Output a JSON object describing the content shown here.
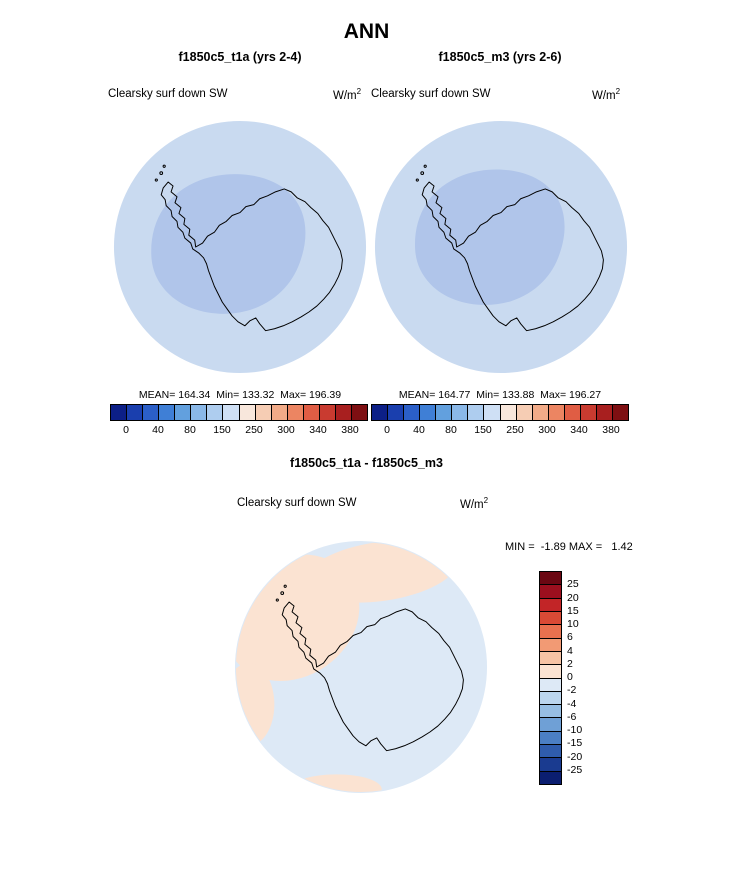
{
  "page_title": "ANN",
  "units": {
    "base": "W/m",
    "exp": "2"
  },
  "panels": {
    "left": {
      "title": "f1850c5_t1a (yrs 2-4)",
      "field": "Clearsky surf down SW",
      "stats": "MEAN= 164.34  Min= 133.32  Max= 196.39"
    },
    "right": {
      "title": "f1850c5_m3 (yrs 2-6)",
      "field": "Clearsky surf down SW",
      "stats": "MEAN= 164.77  Min= 133.88  Max= 196.27"
    },
    "diff": {
      "title": "f1850c5_t1a - f1850c5_m3",
      "field": "Clearsky surf down SW",
      "minmax": "MIN =  -1.89 MAX =   1.42"
    }
  },
  "map_colors": {
    "base": "#c9daf0",
    "blob": "#b0c5ea",
    "diff_base": "#dde9f6",
    "diff_warm": "#fbe3d2",
    "coastline": "#000000"
  },
  "colorbars": {
    "absolute": {
      "orientation": "horizontal",
      "colors": [
        "#0c1f87",
        "#1a3fae",
        "#2b5fc8",
        "#3f7fd6",
        "#62a0de",
        "#8ab8e8",
        "#aecdef",
        "#cfe0f5",
        "#f8e7dc",
        "#f6cdb4",
        "#f2ab88",
        "#ec8562",
        "#e05d44",
        "#c93b30",
        "#a81f1f",
        "#7e0f12"
      ],
      "tick_labels": [
        "0",
        "40",
        "80",
        "150",
        "250",
        "300",
        "340",
        "380"
      ]
    },
    "difference": {
      "orientation": "vertical",
      "colors": [
        "#6b0712",
        "#9c0f1e",
        "#c22527",
        "#d94a35",
        "#e8714f",
        "#f29a74",
        "#f7c3a4",
        "#fbe3d2",
        "#dde9f6",
        "#bcd6ee",
        "#97bee3",
        "#6fa0d6",
        "#4b7fc4",
        "#2f5cac",
        "#1a3b90",
        "#0b1e70"
      ],
      "tick_labels": [
        "25",
        "20",
        "15",
        "10",
        "6",
        "4",
        "2",
        "0",
        "-2",
        "-4",
        "-6",
        "-10",
        "-15",
        "-20",
        "-25"
      ]
    }
  },
  "chart_data": [
    {
      "type": "heatmap",
      "subtype": "south-polar-map",
      "title": "f1850c5_t1a (yrs 2-4)",
      "field": "Clearsky surf down SW",
      "units": "W/m^2",
      "stats": {
        "mean": 164.34,
        "min": 133.32,
        "max": 196.39
      },
      "colorbar_orientation": "horizontal",
      "colorbar_ticks": [
        0,
        40,
        80,
        150,
        250,
        300,
        340,
        380
      ]
    },
    {
      "type": "heatmap",
      "subtype": "south-polar-map",
      "title": "f1850c5_m3 (yrs 2-6)",
      "field": "Clearsky surf down SW",
      "units": "W/m^2",
      "stats": {
        "mean": 164.77,
        "min": 133.88,
        "max": 196.27
      },
      "colorbar_orientation": "horizontal",
      "colorbar_ticks": [
        0,
        40,
        80,
        150,
        250,
        300,
        340,
        380
      ]
    },
    {
      "type": "heatmap",
      "subtype": "south-polar-map",
      "title": "f1850c5_t1a - f1850c5_m3",
      "field": "Clearsky surf down SW",
      "units": "W/m^2",
      "stats": {
        "min": -1.89,
        "max": 1.42
      },
      "colorbar_orientation": "vertical",
      "colorbar_ticks": [
        25,
        20,
        15,
        10,
        6,
        4,
        2,
        0,
        -2,
        -4,
        -6,
        -10,
        -15,
        -20,
        -25
      ]
    }
  ]
}
